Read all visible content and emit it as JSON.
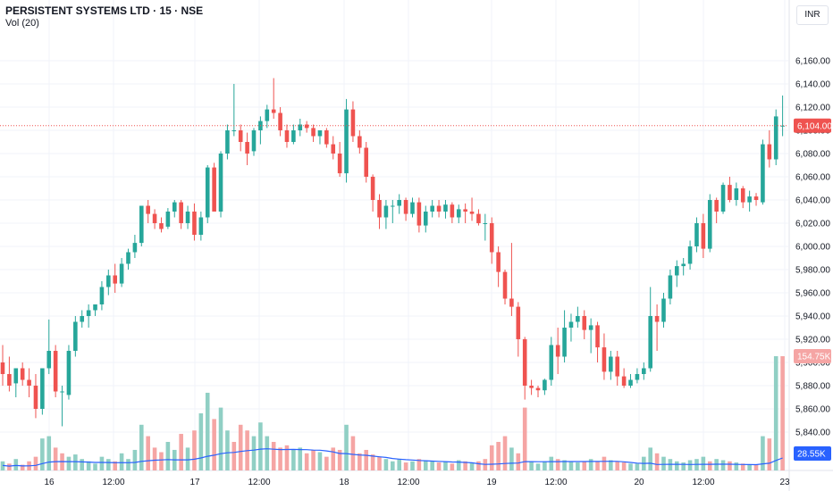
{
  "header": {
    "title": "PERSISTENT SYSTEMS LTD · 15 · NSE",
    "indicator": "Vol (20)",
    "currency": "INR"
  },
  "colors": {
    "up": "#26a69a",
    "down": "#ef5350",
    "up_vol": "#90cfc4",
    "down_vol": "#f5a5a4",
    "ma": "#2962ff",
    "grid": "#f0f3fa",
    "last_price_line": "#ef5350"
  },
  "chart_data": {
    "type": "candlestick",
    "title": "PERSISTENT SYSTEMS LTD · 15 · NSE",
    "ylim": [
      5820,
      6180
    ],
    "y_ticks": [
      "6,160.00",
      "6,140.00",
      "6,120.00",
      "6,100.00",
      "6,080.00",
      "6,060.00",
      "6,040.00",
      "6,020.00",
      "6,000.00",
      "5,980.00",
      "5,960.00",
      "5,940.00",
      "5,920.00",
      "5,900.00",
      "5,880.00",
      "5,860.00",
      "5,840.00"
    ],
    "x_ticks": [
      "16",
      "12:00",
      "17",
      "12:00",
      "18",
      "12:00",
      "19",
      "12:00",
      "20",
      "12:00",
      "23"
    ],
    "last_price": 6104,
    "last_price_label": "6,104.00",
    "last_volume_label": "154.75K",
    "ma_volume_label": "28.55K",
    "grid": true,
    "candles": [
      [
        5900,
        5915,
        5880,
        5890
      ],
      [
        5890,
        5905,
        5875,
        5880
      ],
      [
        5882,
        5895,
        5870,
        5895
      ],
      [
        5895,
        5900,
        5880,
        5885
      ],
      [
        5885,
        5895,
        5870,
        5880
      ],
      [
        5880,
        5890,
        5852,
        5860
      ],
      [
        5860,
        5895,
        5855,
        5895
      ],
      [
        5895,
        5937,
        5890,
        5910
      ],
      [
        5910,
        5915,
        5870,
        5875
      ],
      [
        5875,
        5880,
        5845,
        5875
      ],
      [
        5872,
        5915,
        5868,
        5910
      ],
      [
        5910,
        5940,
        5905,
        5935
      ],
      [
        5935,
        5945,
        5930,
        5940
      ],
      [
        5940,
        5950,
        5930,
        5945
      ],
      [
        5945,
        5950,
        5940,
        5950
      ],
      [
        5950,
        5970,
        5945,
        5965
      ],
      [
        5965,
        5980,
        5958,
        5975
      ],
      [
        5975,
        5985,
        5960,
        5968
      ],
      [
        5968,
        5990,
        5965,
        5985
      ],
      [
        5985,
        5998,
        5980,
        5995
      ],
      [
        5995,
        6010,
        5990,
        6003
      ],
      [
        6003,
        6035,
        6000,
        6035
      ],
      [
        6035,
        6040,
        6020,
        6028
      ],
      [
        6028,
        6032,
        6015,
        6020
      ],
      [
        6020,
        6025,
        6012,
        6015
      ],
      [
        6017,
        6033,
        6015,
        6030
      ],
      [
        6030,
        6040,
        6025,
        6038
      ],
      [
        6038,
        6040,
        6015,
        6020
      ],
      [
        6020,
        6035,
        6015,
        6030
      ],
      [
        6030,
        6037,
        6005,
        6010
      ],
      [
        6010,
        6030,
        6005,
        6025
      ],
      [
        6025,
        6070,
        6020,
        6068
      ],
      [
        6068,
        6072,
        6030,
        6030
      ],
      [
        6030,
        6082,
        6025,
        6080
      ],
      [
        6080,
        6105,
        6075,
        6100
      ],
      [
        6100,
        6140,
        6095,
        6100
      ],
      [
        6100,
        6105,
        6082,
        6090
      ],
      [
        6090,
        6098,
        6070,
        6080
      ],
      [
        6082,
        6102,
        6078,
        6100
      ],
      [
        6100,
        6112,
        6088,
        6108
      ],
      [
        6108,
        6122,
        6102,
        6118
      ],
      [
        6118,
        6145,
        6110,
        6115
      ],
      [
        6115,
        6120,
        6095,
        6100
      ],
      [
        6100,
        6105,
        6085,
        6090
      ],
      [
        6090,
        6105,
        6088,
        6100
      ],
      [
        6100,
        6110,
        6095,
        6105
      ],
      [
        6105,
        6108,
        6098,
        6102
      ],
      [
        6102,
        6105,
        6090,
        6095
      ],
      [
        6095,
        6100,
        6088,
        6100
      ],
      [
        6100,
        6102,
        6085,
        6088
      ],
      [
        6088,
        6095,
        6075,
        6080
      ],
      [
        6080,
        6090,
        6060,
        6063
      ],
      [
        6063,
        6127,
        6055,
        6118
      ],
      [
        6118,
        6125,
        6090,
        6095
      ],
      [
        6095,
        6100,
        6080,
        6085
      ],
      [
        6085,
        6090,
        6055,
        6060
      ],
      [
        6060,
        6062,
        6030,
        6040
      ],
      [
        6040,
        6045,
        6015,
        6025
      ],
      [
        6025,
        6040,
        6015,
        6035
      ],
      [
        6035,
        6040,
        6020,
        6035
      ],
      [
        6035,
        6045,
        6028,
        6040
      ],
      [
        6040,
        6042,
        6022,
        6028
      ],
      [
        6028,
        6042,
        6025,
        6038
      ],
      [
        6038,
        6042,
        6012,
        6018
      ],
      [
        6018,
        6035,
        6012,
        6030
      ],
      [
        6030,
        6040,
        6025,
        6035
      ],
      [
        6035,
        6040,
        6025,
        6030
      ],
      [
        6030,
        6040,
        6024,
        6036
      ],
      [
        6036,
        6038,
        6020,
        6025
      ],
      [
        6025,
        6036,
        6020,
        6032
      ],
      [
        6032,
        6037,
        6020,
        6030
      ],
      [
        6030,
        6042,
        6022,
        6028
      ],
      [
        6028,
        6032,
        6018,
        6020
      ],
      [
        6020,
        6028,
        6005,
        6020
      ],
      [
        6020,
        6025,
        5985,
        5995
      ],
      [
        5995,
        6000,
        5965,
        5978
      ],
      [
        5978,
        5980,
        5950,
        5955
      ],
      [
        5955,
        6003,
        5940,
        5948
      ],
      [
        5948,
        5952,
        5905,
        5920
      ],
      [
        5920,
        5922,
        5868,
        5880
      ],
      [
        5880,
        5885,
        5872,
        5878
      ],
      [
        5878,
        5880,
        5870,
        5876
      ],
      [
        5876,
        5886,
        5872,
        5885
      ],
      [
        5885,
        5922,
        5880,
        5915
      ],
      [
        5915,
        5930,
        5890,
        5905
      ],
      [
        5905,
        5945,
        5900,
        5930
      ],
      [
        5930,
        5942,
        5918,
        5935
      ],
      [
        5935,
        5948,
        5930,
        5940
      ],
      [
        5940,
        5945,
        5920,
        5928
      ],
      [
        5928,
        5938,
        5908,
        5932
      ],
      [
        5932,
        5935,
        5900,
        5913
      ],
      [
        5913,
        5925,
        5885,
        5892
      ],
      [
        5892,
        5910,
        5885,
        5905
      ],
      [
        5905,
        5910,
        5880,
        5888
      ],
      [
        5888,
        5895,
        5878,
        5880
      ],
      [
        5880,
        5890,
        5878,
        5885
      ],
      [
        5885,
        5895,
        5882,
        5890
      ],
      [
        5890,
        5900,
        5885,
        5895
      ],
      [
        5895,
        5965,
        5892,
        5940
      ],
      [
        5940,
        5950,
        5910,
        5935
      ],
      [
        5935,
        5960,
        5930,
        5955
      ],
      [
        5955,
        5980,
        5950,
        5975
      ],
      [
        5975,
        5988,
        5965,
        5983
      ],
      [
        5983,
        5990,
        5975,
        5985
      ],
      [
        5985,
        6005,
        5980,
        6000
      ],
      [
        6000,
        6025,
        5995,
        6020
      ],
      [
        6020,
        6028,
        5990,
        5998
      ],
      [
        5998,
        6045,
        5995,
        6040
      ],
      [
        6040,
        6042,
        6020,
        6030
      ],
      [
        6030,
        6055,
        6028,
        6053
      ],
      [
        6053,
        6060,
        6038,
        6040
      ],
      [
        6040,
        6055,
        6035,
        6050
      ],
      [
        6050,
        6052,
        6033,
        6038
      ],
      [
        6038,
        6048,
        6030,
        6043
      ],
      [
        6043,
        6046,
        6035,
        6040
      ],
      [
        6038,
        6092,
        6036,
        6088
      ],
      [
        6088,
        6100,
        6068,
        6075
      ],
      [
        6075,
        6118,
        6070,
        6112
      ],
      [
        6104,
        6130,
        6095,
        6104
      ]
    ],
    "volumes": [
      [
        0.08,
        0
      ],
      [
        0.06,
        1
      ],
      [
        0.1,
        0
      ],
      [
        0.05,
        1
      ],
      [
        0.08,
        1
      ],
      [
        0.12,
        1
      ],
      [
        0.28,
        0
      ],
      [
        0.3,
        0
      ],
      [
        0.2,
        1
      ],
      [
        0.15,
        1
      ],
      [
        0.12,
        0
      ],
      [
        0.14,
        0
      ],
      [
        0.1,
        0
      ],
      [
        0.08,
        0
      ],
      [
        0.06,
        0
      ],
      [
        0.12,
        0
      ],
      [
        0.1,
        0
      ],
      [
        0.08,
        1
      ],
      [
        0.15,
        0
      ],
      [
        0.1,
        0
      ],
      [
        0.18,
        0
      ],
      [
        0.4,
        0
      ],
      [
        0.3,
        1
      ],
      [
        0.2,
        1
      ],
      [
        0.16,
        1
      ],
      [
        0.25,
        0
      ],
      [
        0.18,
        0
      ],
      [
        0.32,
        1
      ],
      [
        0.2,
        0
      ],
      [
        0.35,
        1
      ],
      [
        0.5,
        0
      ],
      [
        0.68,
        0
      ],
      [
        0.45,
        1
      ],
      [
        0.55,
        0
      ],
      [
        0.35,
        0
      ],
      [
        0.25,
        1
      ],
      [
        0.4,
        1
      ],
      [
        0.35,
        1
      ],
      [
        0.3,
        0
      ],
      [
        0.42,
        0
      ],
      [
        0.3,
        0
      ],
      [
        0.25,
        1
      ],
      [
        0.2,
        1
      ],
      [
        0.22,
        1
      ],
      [
        0.18,
        0
      ],
      [
        0.2,
        0
      ],
      [
        0.15,
        1
      ],
      [
        0.18,
        1
      ],
      [
        0.16,
        0
      ],
      [
        0.12,
        1
      ],
      [
        0.2,
        1
      ],
      [
        0.18,
        1
      ],
      [
        0.4,
        0
      ],
      [
        0.3,
        1
      ],
      [
        0.15,
        1
      ],
      [
        0.18,
        1
      ],
      [
        0.14,
        1
      ],
      [
        0.12,
        1
      ],
      [
        0.1,
        0
      ],
      [
        0.08,
        0
      ],
      [
        0.1,
        0
      ],
      [
        0.07,
        1
      ],
      [
        0.08,
        0
      ],
      [
        0.1,
        1
      ],
      [
        0.09,
        0
      ],
      [
        0.08,
        0
      ],
      [
        0.07,
        1
      ],
      [
        0.08,
        0
      ],
      [
        0.06,
        1
      ],
      [
        0.09,
        0
      ],
      [
        0.08,
        1
      ],
      [
        0.07,
        0
      ],
      [
        0.08,
        1
      ],
      [
        0.1,
        1
      ],
      [
        0.22,
        1
      ],
      [
        0.25,
        1
      ],
      [
        0.3,
        1
      ],
      [
        0.2,
        0
      ],
      [
        0.15,
        1
      ],
      [
        0.55,
        1
      ],
      [
        0.08,
        0
      ],
      [
        0.06,
        0
      ],
      [
        0.08,
        0
      ],
      [
        0.12,
        0
      ],
      [
        0.1,
        1
      ],
      [
        0.09,
        0
      ],
      [
        0.08,
        0
      ],
      [
        0.07,
        0
      ],
      [
        0.08,
        1
      ],
      [
        0.1,
        0
      ],
      [
        0.08,
        1
      ],
      [
        0.12,
        1
      ],
      [
        0.09,
        0
      ],
      [
        0.08,
        1
      ],
      [
        0.07,
        1
      ],
      [
        0.06,
        0
      ],
      [
        0.06,
        0
      ],
      [
        0.12,
        0
      ],
      [
        0.2,
        0
      ],
      [
        0.15,
        1
      ],
      [
        0.12,
        0
      ],
      [
        0.1,
        0
      ],
      [
        0.08,
        0
      ],
      [
        0.07,
        0
      ],
      [
        0.09,
        0
      ],
      [
        0.1,
        0
      ],
      [
        0.12,
        0
      ],
      [
        0.08,
        1
      ],
      [
        0.1,
        0
      ],
      [
        0.09,
        0
      ],
      [
        0.08,
        1
      ],
      [
        0.07,
        0
      ],
      [
        0.06,
        1
      ],
      [
        0.05,
        0
      ],
      [
        0.05,
        1
      ],
      [
        0.3,
        0
      ],
      [
        0.28,
        1
      ],
      [
        1.0,
        0
      ],
      [
        1.0,
        1
      ]
    ]
  }
}
